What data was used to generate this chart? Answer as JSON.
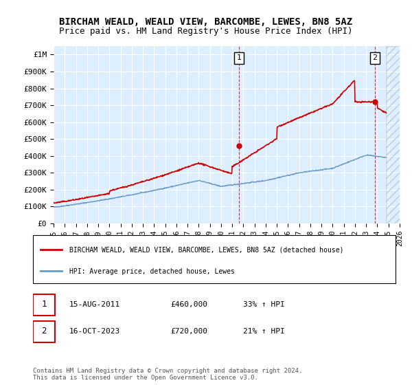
{
  "title": "BIRCHAM WEALD, WEALD VIEW, BARCOMBE, LEWES, BN8 5AZ",
  "subtitle": "Price paid vs. HM Land Registry's House Price Index (HPI)",
  "ylim": [
    0,
    1050000
  ],
  "yticks": [
    0,
    100000,
    200000,
    300000,
    400000,
    500000,
    600000,
    700000,
    800000,
    900000,
    1000000
  ],
  "ytick_labels": [
    "£0",
    "£100K",
    "£200K",
    "£300K",
    "£400K",
    "£500K",
    "£600K",
    "£700K",
    "£800K",
    "£900K",
    "£1M"
  ],
  "xmin_year": 1995,
  "xmax_year": 2026,
  "xticks": [
    1995,
    1996,
    1997,
    1998,
    1999,
    2000,
    2001,
    2002,
    2003,
    2004,
    2005,
    2006,
    2007,
    2008,
    2009,
    2010,
    2011,
    2012,
    2013,
    2014,
    2015,
    2016,
    2017,
    2018,
    2019,
    2020,
    2021,
    2022,
    2023,
    2024,
    2025,
    2026
  ],
  "red_line_color": "#cc0000",
  "blue_line_color": "#6699cc",
  "background_color": "#ddeeff",
  "plot_bg_color": "#ddeeff",
  "grid_color": "#ffffff",
  "vline_color": "#cc0000",
  "hatch_color": "#bbccdd",
  "legend_label_red": "BIRCHAM WEALD, WEALD VIEW, BARCOMBE, LEWES, BN8 5AZ (detached house)",
  "legend_label_blue": "HPI: Average price, detached house, Lewes",
  "annotation1_num": "1",
  "annotation1_date": "15-AUG-2011",
  "annotation1_price": "£460,000",
  "annotation1_hpi": "33% ↑ HPI",
  "annotation1_year": 2011.62,
  "annotation2_num": "2",
  "annotation2_date": "16-OCT-2023",
  "annotation2_price": "£720,000",
  "annotation2_hpi": "21% ↑ HPI",
  "annotation2_year": 2023.79,
  "sale1_price": 460000,
  "sale2_price": 720000,
  "footer": "Contains HM Land Registry data © Crown copyright and database right 2024.\nThis data is licensed under the Open Government Licence v3.0.",
  "title_fontsize": 10,
  "subtitle_fontsize": 9
}
